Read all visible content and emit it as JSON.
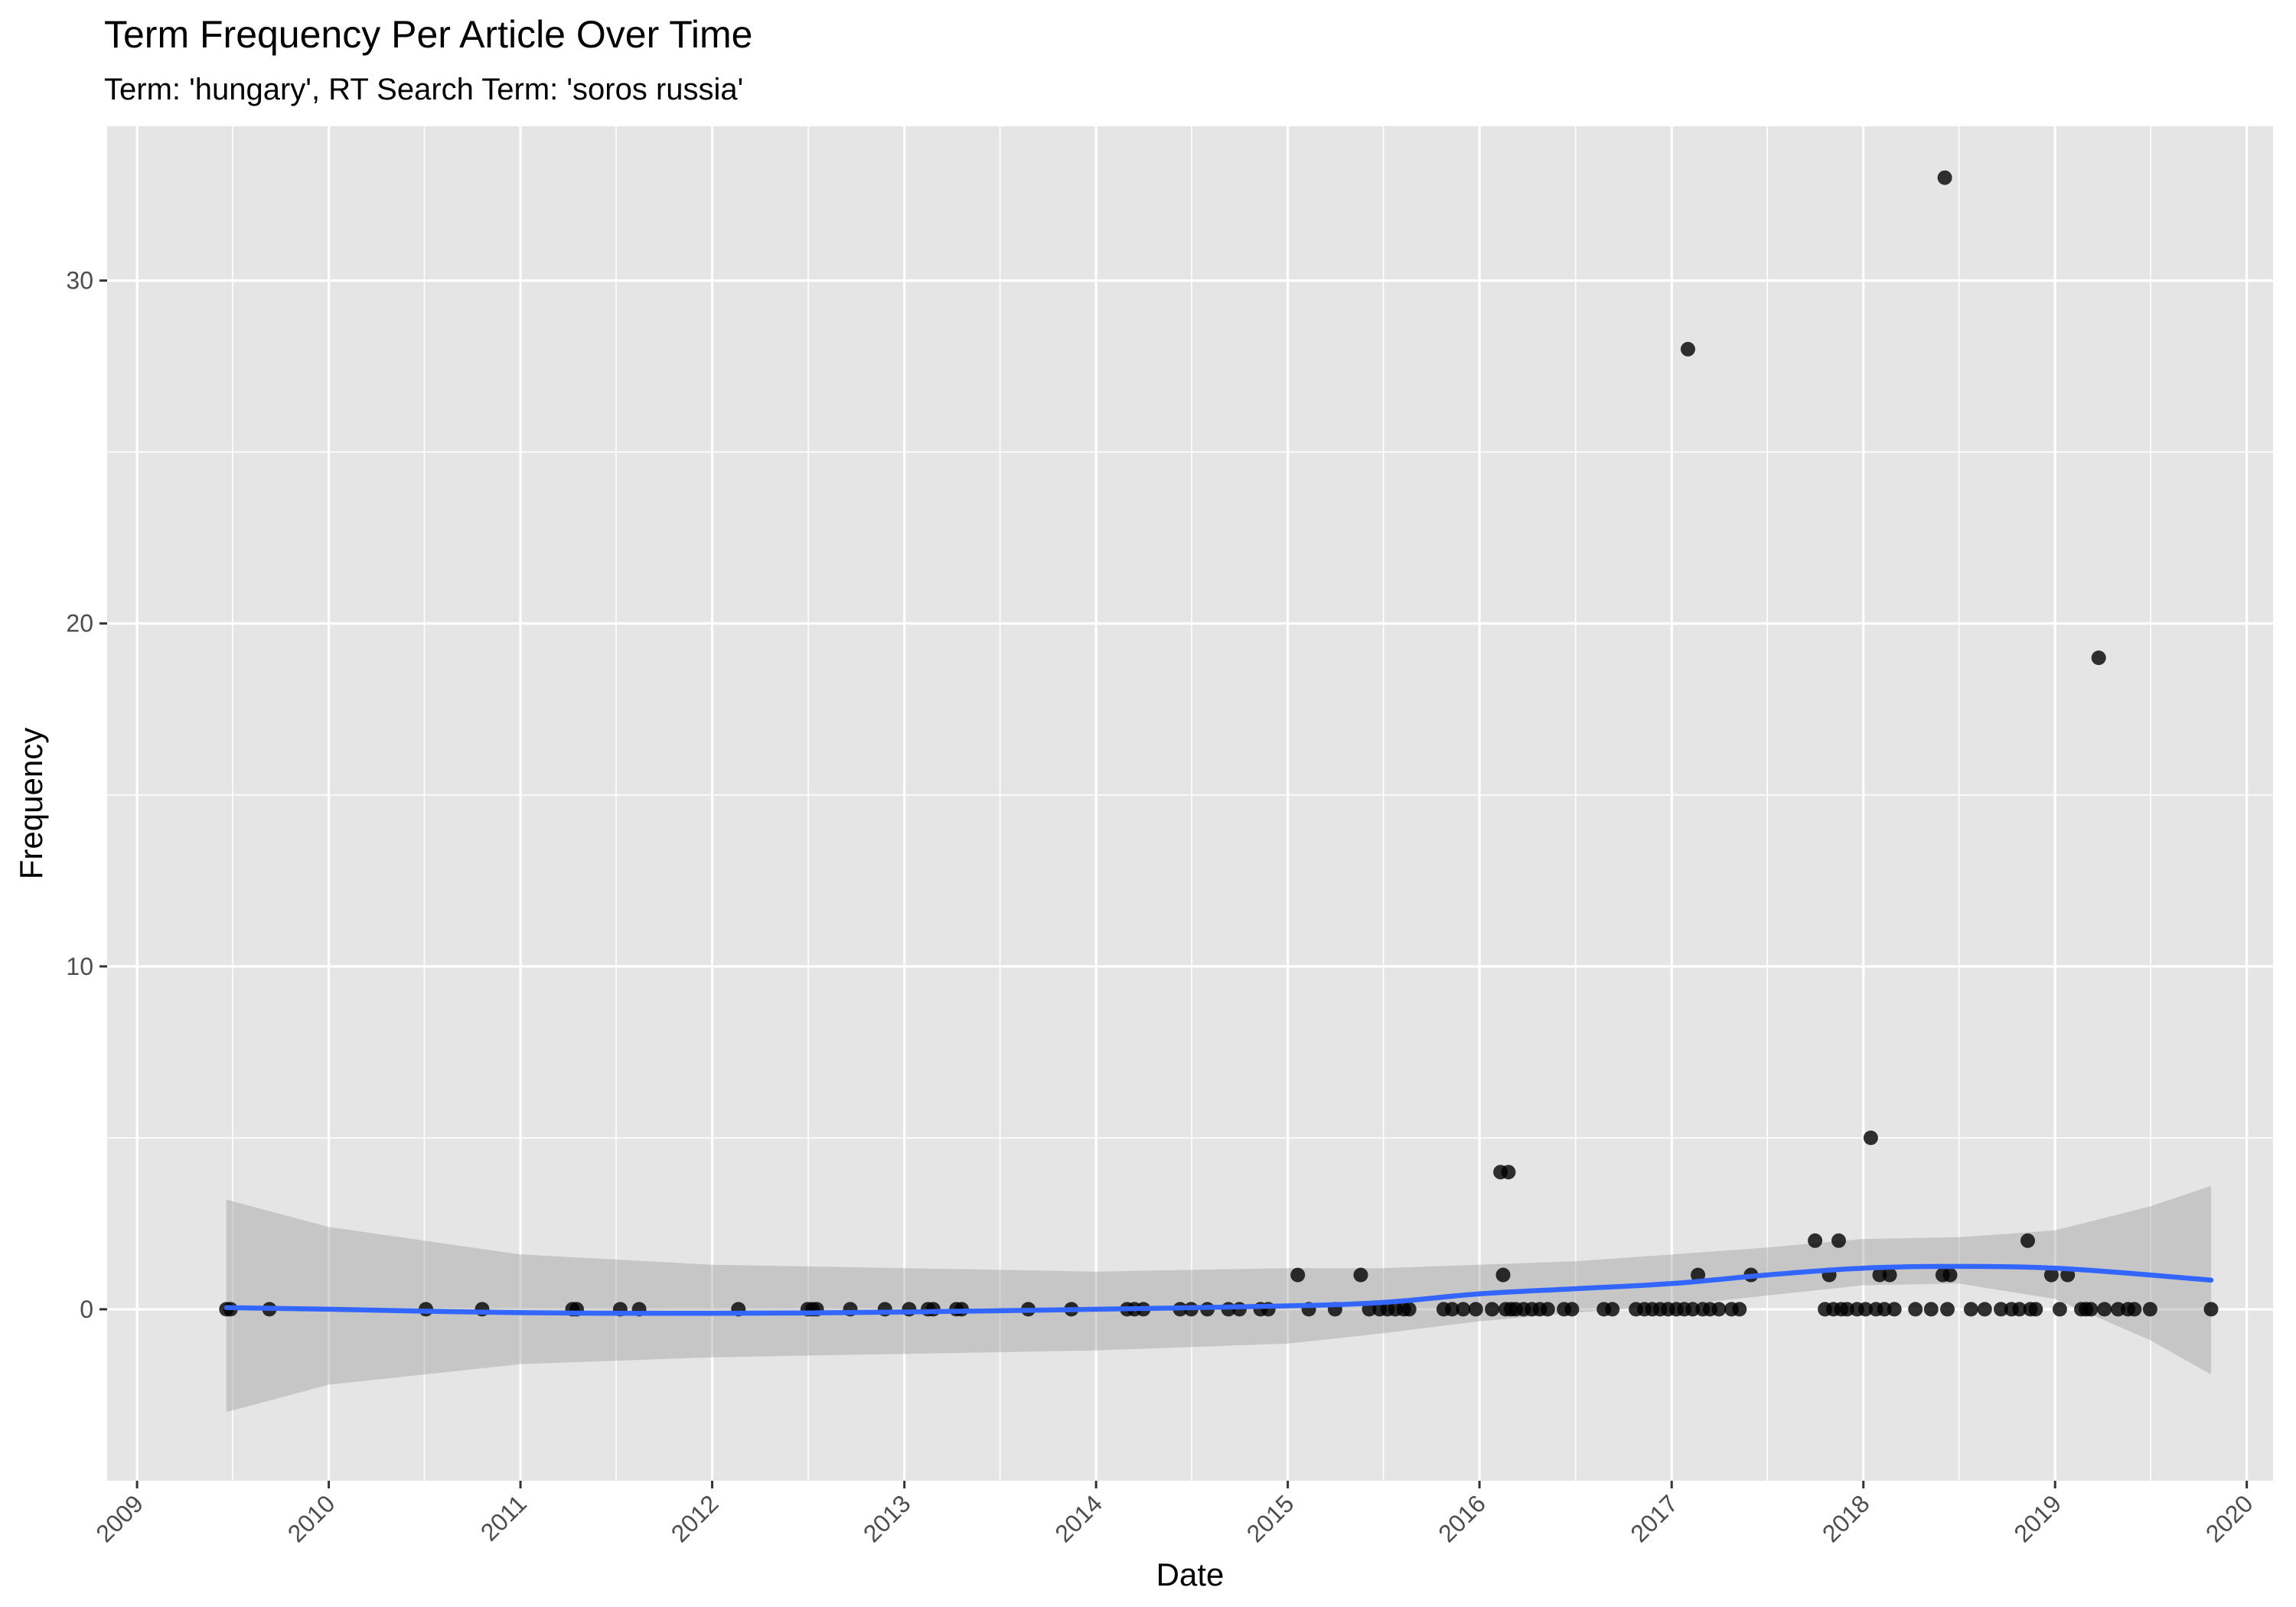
{
  "chart_data": {
    "type": "scatter",
    "title": "Term Frequency Per Article Over Time",
    "subtitle": "Term: 'hungary', RT Search Term: 'soros russia'",
    "xlabel": "Date",
    "ylabel": "Frequency",
    "xlim": [
      "2008-11-05",
      "2020-02-20"
    ],
    "ylim": [
      -5,
      34.5
    ],
    "x_ticks": [
      "2009",
      "2010",
      "2011",
      "2012",
      "2013",
      "2014",
      "2015",
      "2016",
      "2017",
      "2018",
      "2019",
      "2020"
    ],
    "y_ticks": [
      0,
      10,
      20,
      30
    ],
    "grid": true,
    "legend": "none",
    "colors": {
      "panel": "#e5e5e5",
      "grid": "#ffffff",
      "points": "#000000",
      "smooth_line": "#3366ff",
      "ribbon": "#999999"
    },
    "points": [
      {
        "x": "2009-06-20",
        "y": 0
      },
      {
        "x": "2009-06-28",
        "y": 0
      },
      {
        "x": "2009-09-10",
        "y": 0
      },
      {
        "x": "2010-07-05",
        "y": 0
      },
      {
        "x": "2010-10-20",
        "y": 0
      },
      {
        "x": "2011-04-10",
        "y": 0
      },
      {
        "x": "2011-04-18",
        "y": 0
      },
      {
        "x": "2011-07-10",
        "y": 0
      },
      {
        "x": "2011-08-15",
        "y": 0
      },
      {
        "x": "2012-02-20",
        "y": 0
      },
      {
        "x": "2012-07-01",
        "y": 0
      },
      {
        "x": "2012-07-10",
        "y": 0
      },
      {
        "x": "2012-07-18",
        "y": 0
      },
      {
        "x": "2012-09-20",
        "y": 0
      },
      {
        "x": "2012-11-25",
        "y": 0
      },
      {
        "x": "2013-01-10",
        "y": 0
      },
      {
        "x": "2013-02-15",
        "y": 0
      },
      {
        "x": "2013-02-25",
        "y": 0
      },
      {
        "x": "2013-04-10",
        "y": 0
      },
      {
        "x": "2013-04-20",
        "y": 0
      },
      {
        "x": "2013-08-25",
        "y": 0
      },
      {
        "x": "2013-11-15",
        "y": 0
      },
      {
        "x": "2014-03-01",
        "y": 0
      },
      {
        "x": "2014-03-15",
        "y": 0
      },
      {
        "x": "2014-04-01",
        "y": 0
      },
      {
        "x": "2014-06-10",
        "y": 0
      },
      {
        "x": "2014-07-01",
        "y": 0
      },
      {
        "x": "2014-08-01",
        "y": 0
      },
      {
        "x": "2014-09-10",
        "y": 0
      },
      {
        "x": "2014-10-01",
        "y": 0
      },
      {
        "x": "2014-11-10",
        "y": 0
      },
      {
        "x": "2014-11-25",
        "y": 0
      },
      {
        "x": "2015-01-20",
        "y": 1
      },
      {
        "x": "2015-02-10",
        "y": 0
      },
      {
        "x": "2015-04-01",
        "y": 0
      },
      {
        "x": "2015-05-20",
        "y": 1
      },
      {
        "x": "2015-06-05",
        "y": 0
      },
      {
        "x": "2015-06-25",
        "y": 0
      },
      {
        "x": "2015-07-10",
        "y": 0
      },
      {
        "x": "2015-07-25",
        "y": 0
      },
      {
        "x": "2015-08-10",
        "y": 0
      },
      {
        "x": "2015-08-20",
        "y": 0
      },
      {
        "x": "2015-10-25",
        "y": 0
      },
      {
        "x": "2015-11-10",
        "y": 0
      },
      {
        "x": "2015-12-01",
        "y": 0
      },
      {
        "x": "2015-12-25",
        "y": 0
      },
      {
        "x": "2016-01-25",
        "y": 0
      },
      {
        "x": "2016-02-10",
        "y": 4
      },
      {
        "x": "2016-02-15",
        "y": 1
      },
      {
        "x": "2016-02-20",
        "y": 0
      },
      {
        "x": "2016-02-25",
        "y": 4
      },
      {
        "x": "2016-03-01",
        "y": 0
      },
      {
        "x": "2016-03-10",
        "y": 0
      },
      {
        "x": "2016-03-25",
        "y": 0
      },
      {
        "x": "2016-04-10",
        "y": 0
      },
      {
        "x": "2016-04-25",
        "y": 0
      },
      {
        "x": "2016-05-10",
        "y": 0
      },
      {
        "x": "2016-06-10",
        "y": 0
      },
      {
        "x": "2016-06-25",
        "y": 0
      },
      {
        "x": "2016-08-25",
        "y": 0
      },
      {
        "x": "2016-09-10",
        "y": 0
      },
      {
        "x": "2016-10-25",
        "y": 0
      },
      {
        "x": "2016-11-10",
        "y": 0
      },
      {
        "x": "2016-11-25",
        "y": 0
      },
      {
        "x": "2016-12-10",
        "y": 0
      },
      {
        "x": "2016-12-25",
        "y": 0
      },
      {
        "x": "2017-01-10",
        "y": 0
      },
      {
        "x": "2017-01-25",
        "y": 0
      },
      {
        "x": "2017-02-01",
        "y": 28
      },
      {
        "x": "2017-02-10",
        "y": 0
      },
      {
        "x": "2017-02-20",
        "y": 1
      },
      {
        "x": "2017-03-01",
        "y": 0
      },
      {
        "x": "2017-03-15",
        "y": 0
      },
      {
        "x": "2017-04-01",
        "y": 0
      },
      {
        "x": "2017-04-25",
        "y": 0
      },
      {
        "x": "2017-05-10",
        "y": 0
      },
      {
        "x": "2017-06-01",
        "y": 1
      },
      {
        "x": "2017-10-01",
        "y": 2
      },
      {
        "x": "2017-10-20",
        "y": 0
      },
      {
        "x": "2017-10-28",
        "y": 1
      },
      {
        "x": "2017-11-05",
        "y": 0
      },
      {
        "x": "2017-11-15",
        "y": 2
      },
      {
        "x": "2017-11-20",
        "y": 0
      },
      {
        "x": "2017-12-01",
        "y": 0
      },
      {
        "x": "2017-12-20",
        "y": 0
      },
      {
        "x": "2018-01-05",
        "y": 0
      },
      {
        "x": "2018-01-15",
        "y": 5
      },
      {
        "x": "2018-01-25",
        "y": 0
      },
      {
        "x": "2018-02-01",
        "y": 1
      },
      {
        "x": "2018-02-10",
        "y": 0
      },
      {
        "x": "2018-02-20",
        "y": 1
      },
      {
        "x": "2018-03-01",
        "y": 0
      },
      {
        "x": "2018-04-10",
        "y": 0
      },
      {
        "x": "2018-05-10",
        "y": 0
      },
      {
        "x": "2018-06-01",
        "y": 1
      },
      {
        "x": "2018-06-05",
        "y": 33
      },
      {
        "x": "2018-06-10",
        "y": 0
      },
      {
        "x": "2018-06-15",
        "y": 1
      },
      {
        "x": "2018-07-25",
        "y": 0
      },
      {
        "x": "2018-08-20",
        "y": 0
      },
      {
        "x": "2018-09-20",
        "y": 0
      },
      {
        "x": "2018-10-10",
        "y": 0
      },
      {
        "x": "2018-10-25",
        "y": 0
      },
      {
        "x": "2018-11-10",
        "y": 2
      },
      {
        "x": "2018-11-15",
        "y": 0
      },
      {
        "x": "2018-11-25",
        "y": 0
      },
      {
        "x": "2018-12-25",
        "y": 1
      },
      {
        "x": "2019-01-10",
        "y": 0
      },
      {
        "x": "2019-01-25",
        "y": 1
      },
      {
        "x": "2019-02-20",
        "y": 0
      },
      {
        "x": "2019-03-01",
        "y": 0
      },
      {
        "x": "2019-03-10",
        "y": 0
      },
      {
        "x": "2019-03-25",
        "y": 19
      },
      {
        "x": "2019-04-05",
        "y": 0
      },
      {
        "x": "2019-05-01",
        "y": 0
      },
      {
        "x": "2019-05-20",
        "y": 0
      },
      {
        "x": "2019-06-01",
        "y": 0
      },
      {
        "x": "2019-07-01",
        "y": 0
      },
      {
        "x": "2019-10-25",
        "y": 0
      }
    ],
    "smooth": {
      "method": "loess",
      "x": [
        "2009-06-20",
        "2010-01-01",
        "2011-01-01",
        "2012-01-01",
        "2013-01-01",
        "2014-01-01",
        "2015-01-01",
        "2015-07-01",
        "2016-01-01",
        "2016-07-01",
        "2017-01-01",
        "2017-07-01",
        "2018-01-01",
        "2018-07-01",
        "2019-01-01",
        "2019-07-01",
        "2019-10-25"
      ],
      "y": [
        0.05,
        0.0,
        -0.1,
        -0.12,
        -0.08,
        0.0,
        0.1,
        0.2,
        0.45,
        0.6,
        0.75,
        1.0,
        1.2,
        1.25,
        1.2,
        1.0,
        0.85
      ],
      "ymin": [
        -3.0,
        -2.2,
        -1.6,
        -1.4,
        -1.3,
        -1.2,
        -1.0,
        -0.7,
        -0.35,
        -0.1,
        0.1,
        0.4,
        0.7,
        0.75,
        0.3,
        -0.9,
        -1.9
      ],
      "ymax": [
        3.2,
        2.4,
        1.6,
        1.3,
        1.2,
        1.1,
        1.2,
        1.2,
        1.3,
        1.4,
        1.6,
        1.8,
        2.05,
        2.1,
        2.3,
        3.0,
        3.6
      ]
    }
  }
}
